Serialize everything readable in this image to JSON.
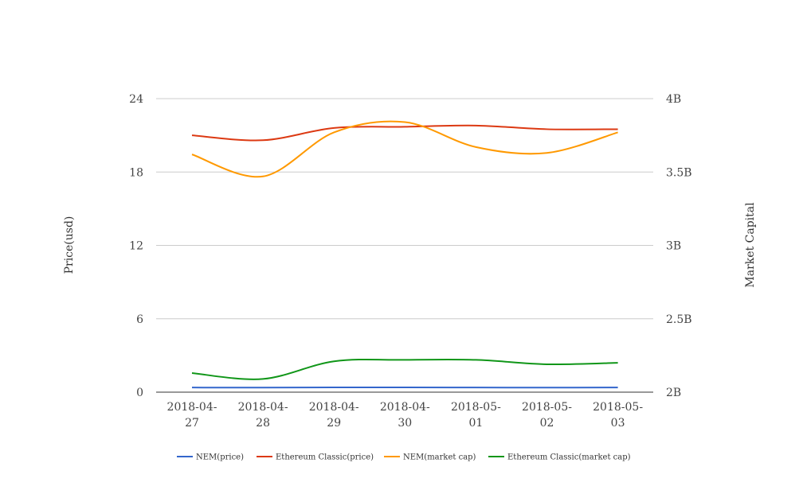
{
  "chart_data": {
    "type": "line",
    "categories": [
      "2018-04-27",
      "2018-04-28",
      "2018-04-29",
      "2018-04-30",
      "2018-05-01",
      "2018-05-02",
      "2018-05-03"
    ],
    "category_lines": [
      [
        "2018-04-",
        "27"
      ],
      [
        "2018-04-",
        "28"
      ],
      [
        "2018-04-",
        "29"
      ],
      [
        "2018-04-",
        "30"
      ],
      [
        "2018-05-",
        "01"
      ],
      [
        "2018-05-",
        "02"
      ],
      [
        "2018-05-",
        "03"
      ]
    ],
    "ylabel_left": "Price(usd)",
    "ylabel_right": "Market Capital",
    "ylim_left": [
      0,
      24
    ],
    "ylim_right": [
      2000000000,
      4000000000
    ],
    "yticks_left": [
      0,
      6,
      12,
      18,
      24
    ],
    "yticks_left_labels": [
      "0",
      "6",
      "12",
      "18",
      "24"
    ],
    "yticks_right": [
      2000000000,
      2500000000,
      3000000000,
      3500000000,
      4000000000
    ],
    "yticks_right_labels": [
      "2B",
      "2.5B",
      "3B",
      "3.5B",
      "4B"
    ],
    "grid": true,
    "legend_position": "bottom",
    "series": [
      {
        "name": "NEM(price)",
        "axis": "left",
        "color": "#3366cc",
        "values": [
          0.38,
          0.37,
          0.39,
          0.39,
          0.38,
          0.37,
          0.38
        ]
      },
      {
        "name": "Ethereum Classic(price)",
        "axis": "left",
        "color": "#dc3912",
        "values": [
          21.0,
          20.6,
          21.6,
          21.7,
          21.8,
          21.5,
          21.5
        ]
      },
      {
        "name": "NEM(market cap)",
        "axis": "right",
        "color": "#ff9900",
        "values": [
          3620000000,
          3470000000,
          3770000000,
          3840000000,
          3670000000,
          3630000000,
          3770000000
        ]
      },
      {
        "name": "Ethereum Classic(market cap)",
        "axis": "right",
        "color": "#109618",
        "values": [
          2130000000,
          2090000000,
          2210000000,
          2220000000,
          2220000000,
          2190000000,
          2200000000
        ]
      }
    ]
  }
}
